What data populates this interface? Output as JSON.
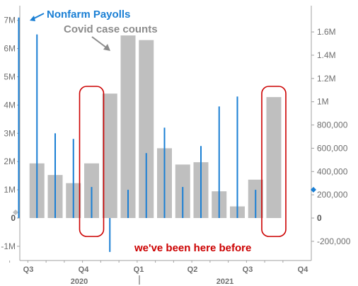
{
  "chart_data": {
    "type": "bar",
    "x": [
      "2020-08",
      "2020-09",
      "2020-10",
      "2020-11",
      "2020-12",
      "2021-01",
      "2021-02",
      "2021-03",
      "2021-04",
      "2021-05",
      "2021-06",
      "2021-07",
      "2021-08",
      "2021-09",
      "2021-10"
    ],
    "quarter_labels": [
      "Q3",
      "Q4",
      "Q1",
      "Q2",
      "Q3",
      "Q4"
    ],
    "year_labels": [
      "2020",
      "2021"
    ],
    "series": [
      {
        "name": "Covid case counts",
        "type": "bar",
        "axis": "right",
        "color": "#bfbfbf",
        "values": [
          null,
          470000,
          370000,
          300000,
          470000,
          1070000,
          1570000,
          1530000,
          600000,
          460000,
          480000,
          230000,
          100000,
          330000,
          1040000
        ]
      },
      {
        "name": "Nonfarm Payolls",
        "type": "bar",
        "axis": "left",
        "color": "#1a7fd4",
        "values": [
          7100000,
          6500000,
          3000000,
          2800000,
          1100000,
          -1200000,
          1000000,
          2300000,
          3200000,
          1100000,
          2550000,
          3950000,
          4300000,
          1000000,
          null
        ]
      }
    ],
    "left_axis": {
      "ylim": [
        -1200000,
        7200000
      ],
      "ticks": [
        "-1M",
        "0",
        "1M",
        "2M",
        "3M",
        "4M",
        "5M",
        "6M",
        "7M"
      ]
    },
    "right_axis": {
      "ylim": [
        -280000,
        1760000
      ],
      "ticks": [
        "-200,000",
        "0",
        "200,000",
        "400,000",
        "600,000",
        "800,000",
        "1M",
        "1.2M",
        "1.4M",
        "1.6M"
      ]
    },
    "annotations": {
      "payrolls_label": "Nonfarm Payolls",
      "covid_label": "Covid case counts",
      "note": "we've been here before"
    },
    "highlighted_months": [
      "2020-12",
      "2021-10"
    ],
    "grid": false,
    "colors": {
      "bar_gray": "#bfbfbf",
      "payroll_blue": "#1a7fd4",
      "highlight_red": "#cc0000",
      "axis": "#a0a0a0"
    }
  }
}
